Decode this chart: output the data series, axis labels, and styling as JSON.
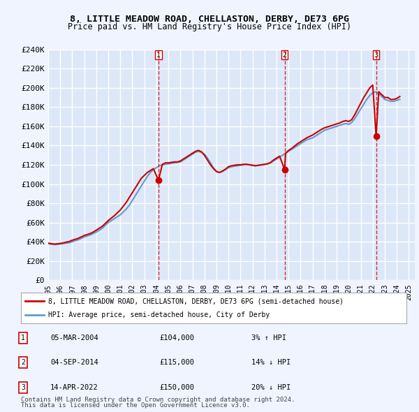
{
  "title": "8, LITTLE MEADOW ROAD, CHELLASTON, DERBY, DE73 6PG",
  "subtitle": "Price paid vs. HM Land Registry's House Price Index (HPI)",
  "ylim": [
    0,
    240000
  ],
  "yticks": [
    0,
    20000,
    40000,
    60000,
    80000,
    100000,
    120000,
    140000,
    160000,
    180000,
    200000,
    220000,
    240000
  ],
  "ytick_labels": [
    "£0",
    "£20K",
    "£40K",
    "£60K",
    "£80K",
    "£100K",
    "£120K",
    "£140K",
    "£160K",
    "£180K",
    "£200K",
    "£220K",
    "£240K"
  ],
  "xlim_start": 1995.0,
  "xlim_end": 2025.5,
  "background_color": "#f0f4ff",
  "plot_bg_color": "#dce8f8",
  "grid_color": "#ffffff",
  "hpi_color": "#6699cc",
  "price_color": "#cc0000",
  "sale_line_color_1": "#cc0000",
  "sale_line_color_2": "#cc0000",
  "sale_line_color_3": "#cc0000",
  "legend_label_red": "8, LITTLE MEADOW ROAD, CHELLASTON, DERBY, DE73 6PG (semi-detached house)",
  "legend_label_blue": "HPI: Average price, semi-detached house, City of Derby",
  "sales": [
    {
      "num": 1,
      "year": 2004.17,
      "price": 104000,
      "date": "05-MAR-2004",
      "pct": "3%",
      "dir": "↑"
    },
    {
      "num": 2,
      "year": 2014.67,
      "price": 115000,
      "date": "04-SEP-2014",
      "pct": "14%",
      "dir": "↓"
    },
    {
      "num": 3,
      "year": 2022.28,
      "price": 150000,
      "date": "14-APR-2022",
      "pct": "20%",
      "dir": "↓"
    }
  ],
  "footer1": "Contains HM Land Registry data © Crown copyright and database right 2024.",
  "footer2": "This data is licensed under the Open Government Licence v3.0.",
  "hpi_data_x": [
    1995.0,
    1995.25,
    1995.5,
    1995.75,
    1996.0,
    1996.25,
    1996.5,
    1996.75,
    1997.0,
    1997.25,
    1997.5,
    1997.75,
    1998.0,
    1998.25,
    1998.5,
    1998.75,
    1999.0,
    1999.25,
    1999.5,
    1999.75,
    2000.0,
    2000.25,
    2000.5,
    2000.75,
    2001.0,
    2001.25,
    2001.5,
    2001.75,
    2002.0,
    2002.25,
    2002.5,
    2002.75,
    2003.0,
    2003.25,
    2003.5,
    2003.75,
    2004.0,
    2004.25,
    2004.5,
    2004.75,
    2005.0,
    2005.25,
    2005.5,
    2005.75,
    2006.0,
    2006.25,
    2006.5,
    2006.75,
    2007.0,
    2007.25,
    2007.5,
    2007.75,
    2008.0,
    2008.25,
    2008.5,
    2008.75,
    2009.0,
    2009.25,
    2009.5,
    2009.75,
    2010.0,
    2010.25,
    2010.5,
    2010.75,
    2011.0,
    2011.25,
    2011.5,
    2011.75,
    2012.0,
    2012.25,
    2012.5,
    2012.75,
    2013.0,
    2013.25,
    2013.5,
    2013.75,
    2014.0,
    2014.25,
    2014.5,
    2014.75,
    2015.0,
    2015.25,
    2015.5,
    2015.75,
    2016.0,
    2016.25,
    2016.5,
    2016.75,
    2017.0,
    2017.25,
    2017.5,
    2017.75,
    2018.0,
    2018.25,
    2018.5,
    2018.75,
    2019.0,
    2019.25,
    2019.5,
    2019.75,
    2020.0,
    2020.25,
    2020.5,
    2020.75,
    2021.0,
    2021.25,
    2021.5,
    2021.75,
    2022.0,
    2022.25,
    2022.5,
    2022.75,
    2023.0,
    2023.25,
    2023.5,
    2023.75,
    2024.0,
    2024.25
  ],
  "hpi_data_y": [
    38000,
    37500,
    37000,
    37200,
    37500,
    38000,
    38500,
    39000,
    40000,
    41000,
    42000,
    43500,
    45000,
    46000,
    47000,
    48500,
    50000,
    52000,
    54000,
    57000,
    60000,
    62000,
    64000,
    66000,
    68000,
    71000,
    74000,
    78000,
    83000,
    88000,
    93000,
    98000,
    103000,
    108000,
    112000,
    115000,
    117000,
    119000,
    120000,
    120500,
    121000,
    121500,
    122000,
    122500,
    123000,
    125000,
    127000,
    129000,
    131000,
    133000,
    134000,
    133000,
    131000,
    127000,
    122000,
    117000,
    113000,
    112000,
    113000,
    115000,
    117000,
    118000,
    118500,
    119000,
    119500,
    120000,
    120500,
    120000,
    119500,
    119000,
    119500,
    120000,
    120500,
    121000,
    122000,
    124000,
    126000,
    128000,
    130000,
    132000,
    134000,
    136000,
    138000,
    140000,
    142000,
    144000,
    146000,
    147000,
    148000,
    150000,
    152000,
    154000,
    156000,
    157000,
    158000,
    159000,
    160000,
    161000,
    162000,
    163000,
    162000,
    164000,
    168000,
    173000,
    178000,
    183000,
    188000,
    192000,
    195000,
    196000,
    194000,
    191000,
    188000,
    187000,
    186000,
    186000,
    187000,
    188000
  ],
  "price_data_x": [
    1995.0,
    1995.25,
    1995.5,
    1995.75,
    1996.0,
    1996.25,
    1996.5,
    1996.75,
    1997.0,
    1997.25,
    1997.5,
    1997.75,
    1998.0,
    1998.25,
    1998.5,
    1998.75,
    1999.0,
    1999.25,
    1999.5,
    1999.75,
    2000.0,
    2000.25,
    2000.5,
    2000.75,
    2001.0,
    2001.25,
    2001.5,
    2001.75,
    2002.0,
    2002.25,
    2002.5,
    2002.75,
    2003.0,
    2003.25,
    2003.5,
    2003.75,
    2004.17,
    2004.5,
    2004.75,
    2005.0,
    2005.25,
    2005.5,
    2005.75,
    2006.0,
    2006.25,
    2006.5,
    2006.75,
    2007.0,
    2007.25,
    2007.5,
    2007.75,
    2008.0,
    2008.25,
    2008.5,
    2008.75,
    2009.0,
    2009.25,
    2009.5,
    2009.75,
    2010.0,
    2010.25,
    2010.5,
    2010.75,
    2011.0,
    2011.25,
    2011.5,
    2011.75,
    2012.0,
    2012.25,
    2012.5,
    2012.75,
    2013.0,
    2013.25,
    2013.5,
    2013.75,
    2014.0,
    2014.25,
    2014.67,
    2014.75,
    2015.0,
    2015.25,
    2015.5,
    2015.75,
    2016.0,
    2016.25,
    2016.5,
    2016.75,
    2017.0,
    2017.25,
    2017.5,
    2017.75,
    2018.0,
    2018.25,
    2018.5,
    2018.75,
    2019.0,
    2019.25,
    2019.5,
    2019.75,
    2020.0,
    2020.25,
    2020.5,
    2020.75,
    2021.0,
    2021.25,
    2021.5,
    2021.75,
    2022.0,
    2022.28,
    2022.5,
    2022.75,
    2023.0,
    2023.25,
    2023.5,
    2023.75,
    2024.0,
    2024.25
  ],
  "price_data_y": [
    38500,
    38000,
    37500,
    37800,
    38200,
    38800,
    39500,
    40200,
    41500,
    42500,
    43500,
    45000,
    46500,
    47500,
    48500,
    50000,
    52000,
    54000,
    56000,
    59000,
    62000,
    64500,
    67000,
    70000,
    73000,
    77000,
    81000,
    86000,
    91000,
    96000,
    101000,
    106000,
    109000,
    112000,
    114000,
    116000,
    104000,
    120500,
    122000,
    122000,
    122500,
    123000,
    123000,
    124000,
    126000,
    128000,
    130000,
    132000,
    134000,
    135000,
    133500,
    130000,
    125000,
    120000,
    116000,
    113000,
    112000,
    113500,
    115500,
    118000,
    119000,
    119500,
    120000,
    120000,
    120500,
    120500,
    120000,
    119500,
    119000,
    119500,
    120000,
    120500,
    121000,
    122500,
    125000,
    127000,
    129000,
    115000,
    132000,
    135000,
    137000,
    139500,
    142000,
    144000,
    146000,
    148000,
    149500,
    151000,
    153000,
    155000,
    157000,
    158500,
    159500,
    160500,
    161500,
    162500,
    163500,
    165000,
    166000,
    165000,
    167000,
    172000,
    178000,
    184000,
    190000,
    195000,
    200000,
    203000,
    150000,
    196000,
    193000,
    190000,
    190000,
    188000,
    188000,
    189000,
    191000
  ]
}
